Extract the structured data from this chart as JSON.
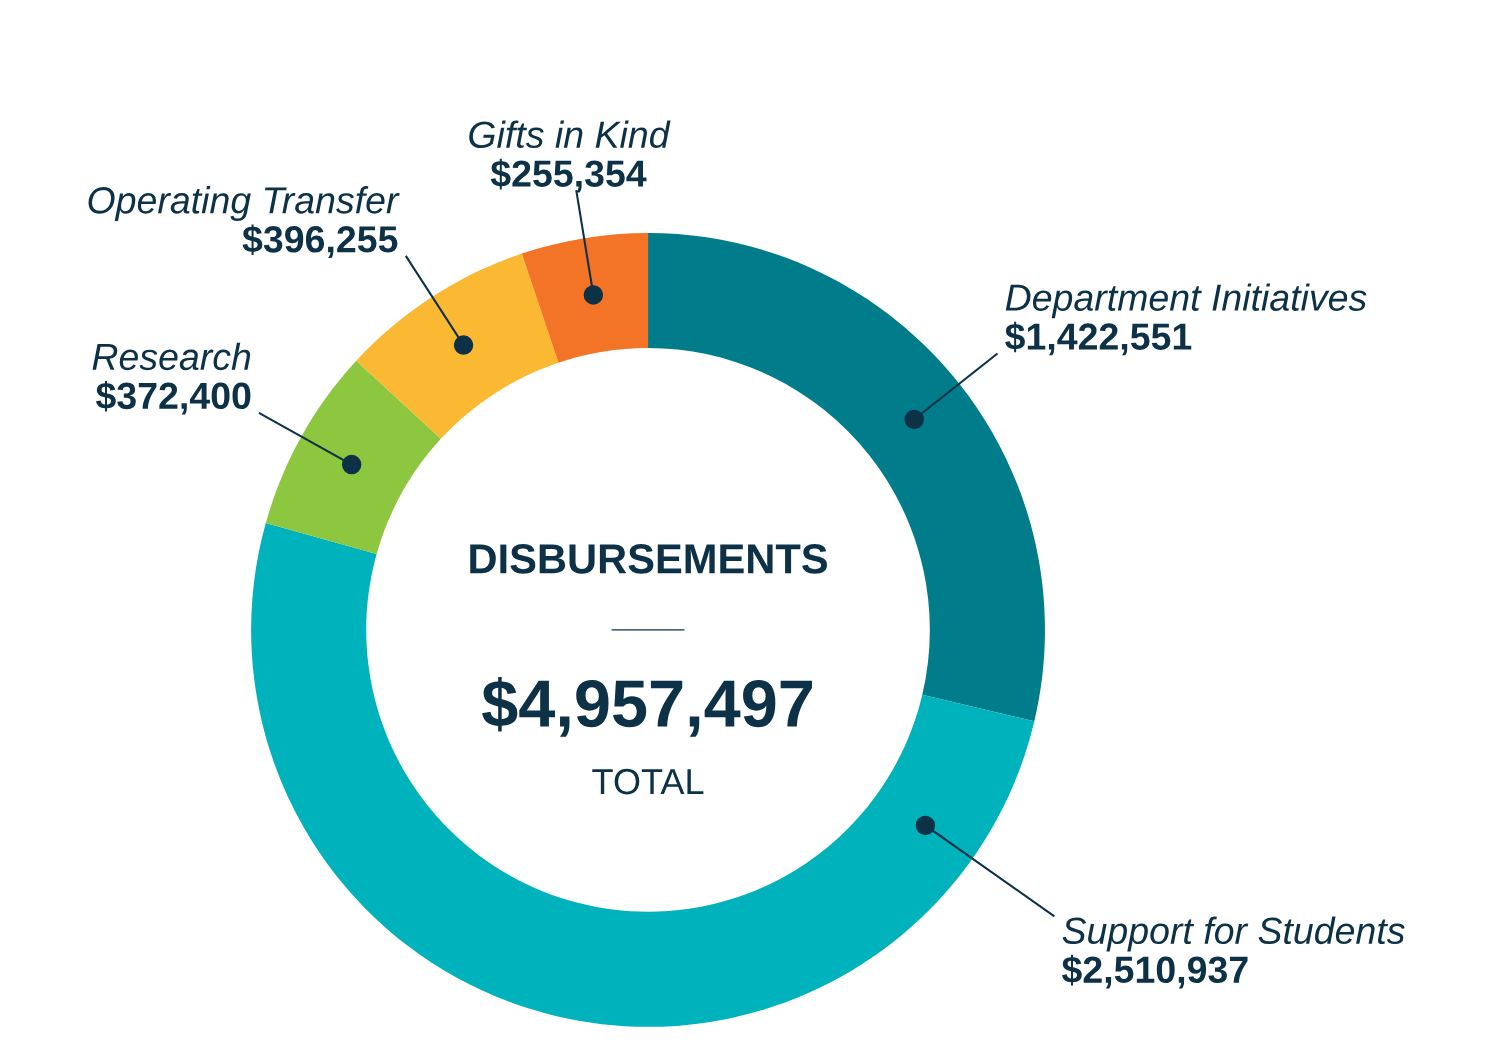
{
  "chart_data": {
    "type": "donut",
    "title": "DISBURSEMENTS",
    "categories": [
      "Department Initiatives",
      "Support for Students",
      "Research",
      "Operating Transfer",
      "Gifts in Kind"
    ],
    "values": [
      1422551,
      2510937,
      372400,
      396255,
      255354
    ],
    "value_labels": [
      "$1,422,551",
      "$2,510,937",
      "$372,400",
      "$396,255",
      "$255,354"
    ],
    "colors": [
      "#007c8a",
      "#00b2bb",
      "#8dc63f",
      "#fbb832",
      "#f37426"
    ],
    "annotations": [
      "$4,957,497",
      "TOTAL"
    ]
  }
}
